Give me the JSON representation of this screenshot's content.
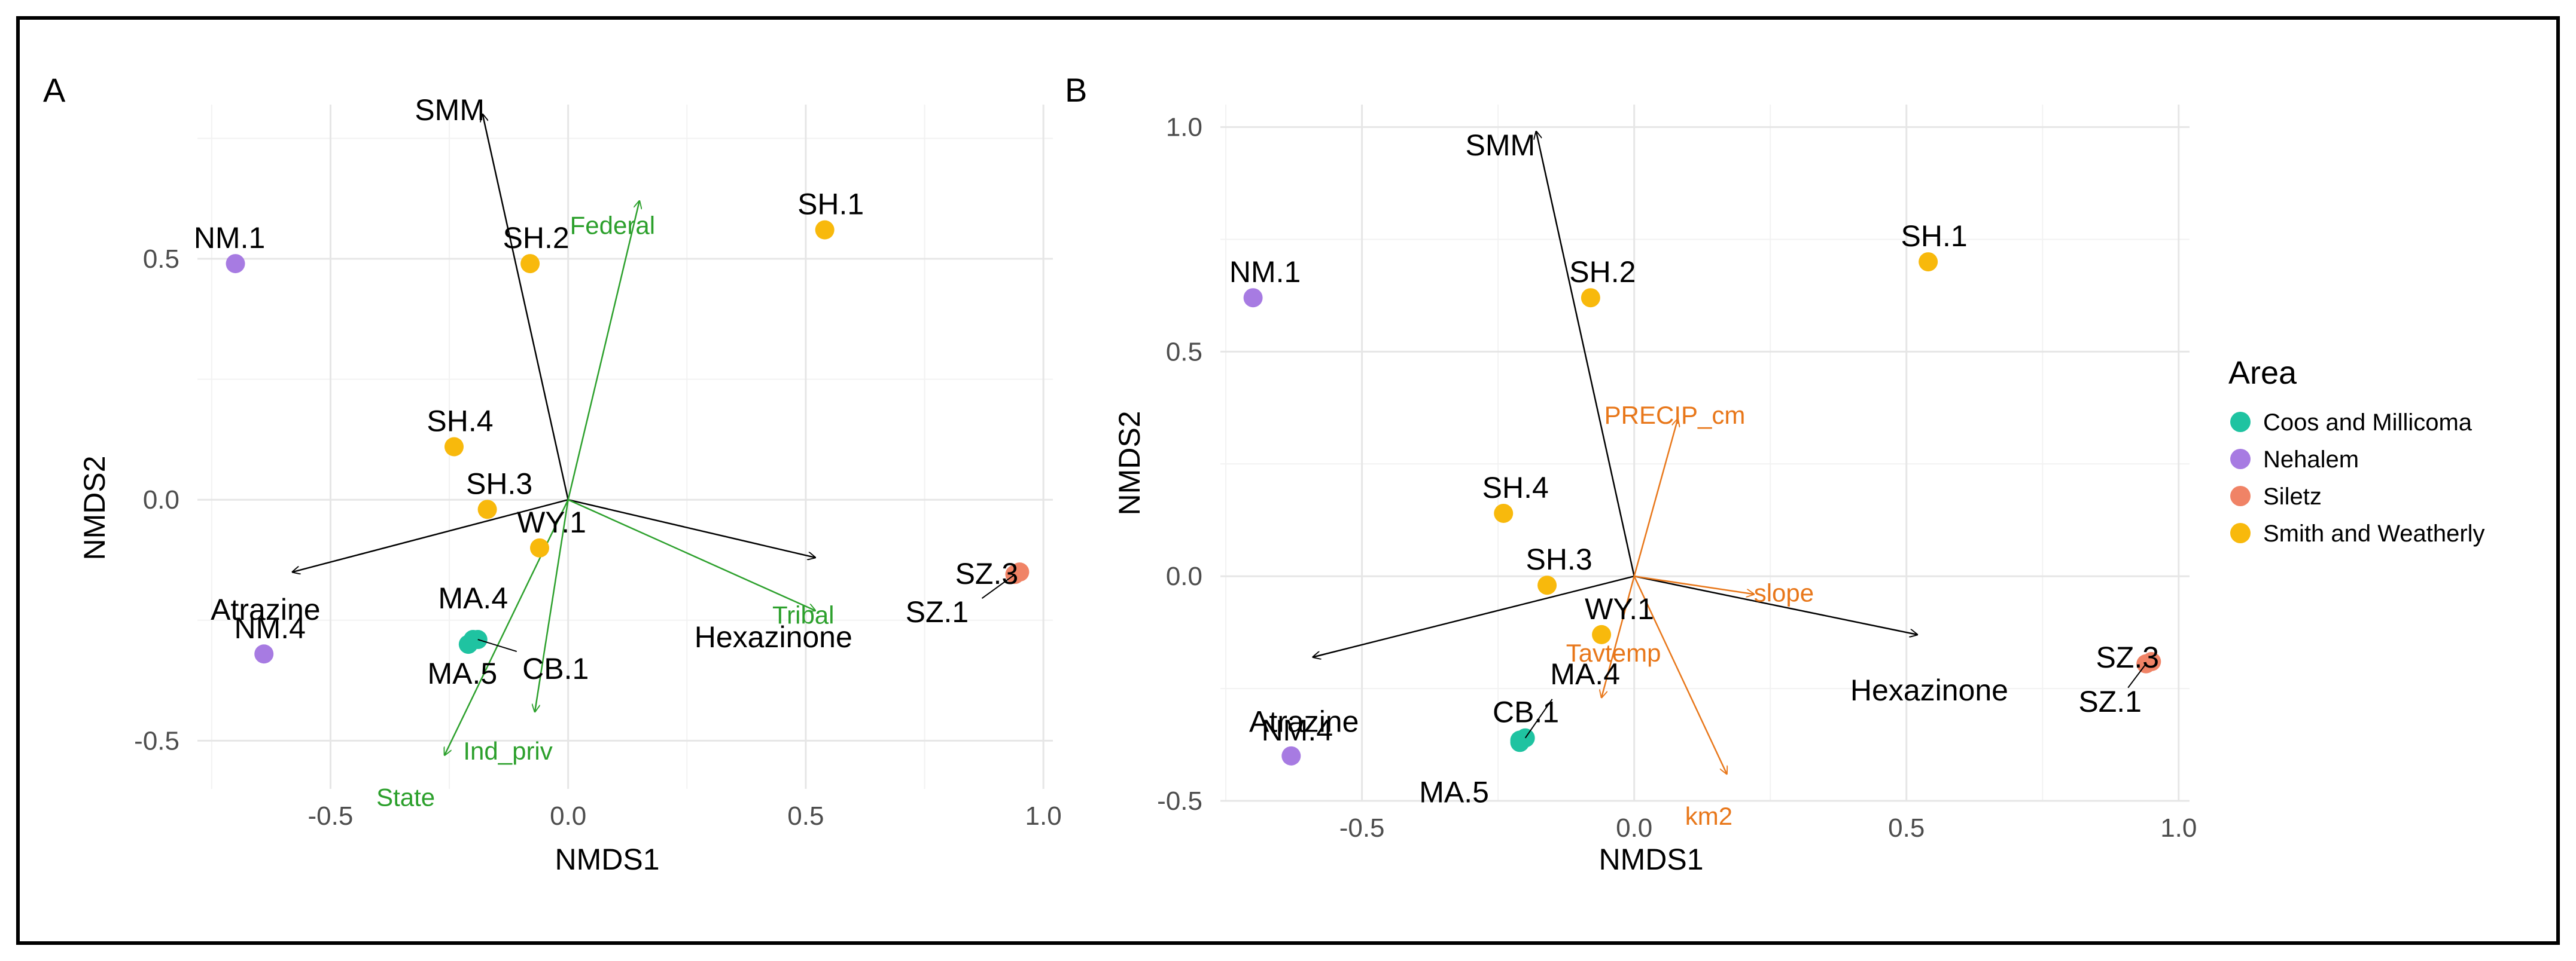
{
  "colors": {
    "border": "#000000",
    "grid_major": "#e6e6e6",
    "grid_minor": "#f2f2f2",
    "panelA_env": "#2ca02c",
    "panelB_env": "#e8771a",
    "species_arrow": "#000000"
  },
  "chart_data": [
    {
      "type": "scatter",
      "panel_label": "A",
      "xlabel": "NMDS1",
      "ylabel": "NMDS2",
      "xlim": [
        -0.78,
        1.02
      ],
      "ylim": [
        -0.6,
        0.82
      ],
      "x_ticks": [
        -0.5,
        0.0,
        0.5,
        1.0
      ],
      "x_tick_labels": [
        "-0.5",
        "0.0",
        "0.5",
        "1.0"
      ],
      "y_ticks": [
        -0.5,
        0.0,
        0.5
      ],
      "y_tick_labels": [
        "-0.5",
        "0.0",
        "0.5"
      ],
      "points": [
        {
          "label": "NM.1",
          "x": -0.7,
          "y": 0.49,
          "area": "Nehalem"
        },
        {
          "label": "SH.2",
          "x": -0.08,
          "y": 0.49,
          "area": "Smith and Weatherly"
        },
        {
          "label": "SH.1",
          "x": 0.54,
          "y": 0.56,
          "area": "Smith and Weatherly"
        },
        {
          "label": "SH.4",
          "x": -0.24,
          "y": 0.11,
          "area": "Smith and Weatherly"
        },
        {
          "label": "SH.3",
          "x": -0.17,
          "y": -0.02,
          "area": "Smith and Weatherly"
        },
        {
          "label": "WY.1",
          "x": -0.06,
          "y": -0.1,
          "area": "Smith and Weatherly"
        },
        {
          "label": "SZ.3",
          "x": 0.95,
          "y": -0.15,
          "area": "Siletz"
        },
        {
          "label": "SZ.1",
          "x": 0.94,
          "y": -0.155,
          "area": "Siletz"
        },
        {
          "label": "NM.4",
          "x": -0.64,
          "y": -0.32,
          "area": "Nehalem"
        },
        {
          "label": "MA.4",
          "x": -0.2,
          "y": -0.29,
          "area": "Coos and Millicoma"
        },
        {
          "label": "MA.5",
          "x": -0.21,
          "y": -0.3,
          "area": "Coos and Millicoma"
        },
        {
          "label": "CB.1",
          "x": -0.19,
          "y": -0.29,
          "area": "Coos and Millicoma"
        }
      ],
      "species_vectors": [
        {
          "label": "SMM",
          "x": -0.18,
          "y": 0.8
        },
        {
          "label": "Atrazine",
          "x": -0.58,
          "y": -0.15
        },
        {
          "label": "Hexazinone",
          "x": 0.52,
          "y": -0.12
        }
      ],
      "env_vectors": [
        {
          "label": "Federal",
          "x": 0.15,
          "y": 0.62
        },
        {
          "label": "Tribal",
          "x": 0.52,
          "y": -0.23
        },
        {
          "label": "Ind_priv",
          "x": -0.07,
          "y": -0.44
        },
        {
          "label": "State",
          "x": -0.26,
          "y": -0.53
        }
      ]
    },
    {
      "type": "scatter",
      "panel_label": "B",
      "xlabel": "NMDS1",
      "ylabel": "NMDS2",
      "xlim": [
        -0.76,
        1.02
      ],
      "ylim": [
        -0.5,
        1.05
      ],
      "x_ticks": [
        -0.5,
        0.0,
        0.5,
        1.0
      ],
      "x_tick_labels": [
        "-0.5",
        "0.0",
        "0.5",
        "1.0"
      ],
      "y_ticks": [
        -0.5,
        0.0,
        0.5,
        1.0
      ],
      "y_tick_labels": [
        "-0.5",
        "0.0",
        "0.5",
        "1.0"
      ],
      "points": [
        {
          "label": "NM.1",
          "x": -0.7,
          "y": 0.62,
          "area": "Nehalem"
        },
        {
          "label": "SH.2",
          "x": -0.08,
          "y": 0.62,
          "area": "Smith and Weatherly"
        },
        {
          "label": "SH.1",
          "x": 0.54,
          "y": 0.7,
          "area": "Smith and Weatherly"
        },
        {
          "label": "SH.4",
          "x": -0.24,
          "y": 0.14,
          "area": "Smith and Weatherly"
        },
        {
          "label": "SH.3",
          "x": -0.16,
          "y": -0.02,
          "area": "Smith and Weatherly"
        },
        {
          "label": "WY.1",
          "x": -0.06,
          "y": -0.13,
          "area": "Smith and Weatherly"
        },
        {
          "label": "SZ.3",
          "x": 0.95,
          "y": -0.19,
          "area": "Siletz"
        },
        {
          "label": "SZ.1",
          "x": 0.94,
          "y": -0.195,
          "area": "Siletz"
        },
        {
          "label": "NM.4",
          "x": -0.63,
          "y": -0.4,
          "area": "Nehalem"
        },
        {
          "label": "MA.4",
          "x": -0.2,
          "y": -0.36,
          "area": "Coos and Millicoma"
        },
        {
          "label": "CB.1",
          "x": -0.21,
          "y": -0.365,
          "area": "Coos and Millicoma"
        },
        {
          "label": "MA.5",
          "x": -0.21,
          "y": -0.37,
          "area": "Coos and Millicoma"
        }
      ],
      "species_vectors": [
        {
          "label": "SMM",
          "x": -0.18,
          "y": 0.99
        },
        {
          "label": "Atrazine",
          "x": -0.59,
          "y": -0.18
        },
        {
          "label": "Hexazinone",
          "x": 0.52,
          "y": -0.13
        }
      ],
      "env_vectors": [
        {
          "label": "PRECIP_cm",
          "x": 0.08,
          "y": 0.35
        },
        {
          "label": "slope",
          "x": 0.22,
          "y": -0.04
        },
        {
          "label": "Tavtemp",
          "x": -0.06,
          "y": -0.27
        },
        {
          "label": "km2",
          "x": 0.17,
          "y": -0.44
        }
      ]
    }
  ],
  "legend": {
    "title": "Area",
    "items": [
      {
        "label": "Coos and Millicoma",
        "color": "#1fc3a1"
      },
      {
        "label": "Nehalem",
        "color": "#a77be2"
      },
      {
        "label": "Siletz",
        "color": "#f08366"
      },
      {
        "label": "Smith and Weatherly",
        "color": "#f8b90c"
      }
    ]
  }
}
